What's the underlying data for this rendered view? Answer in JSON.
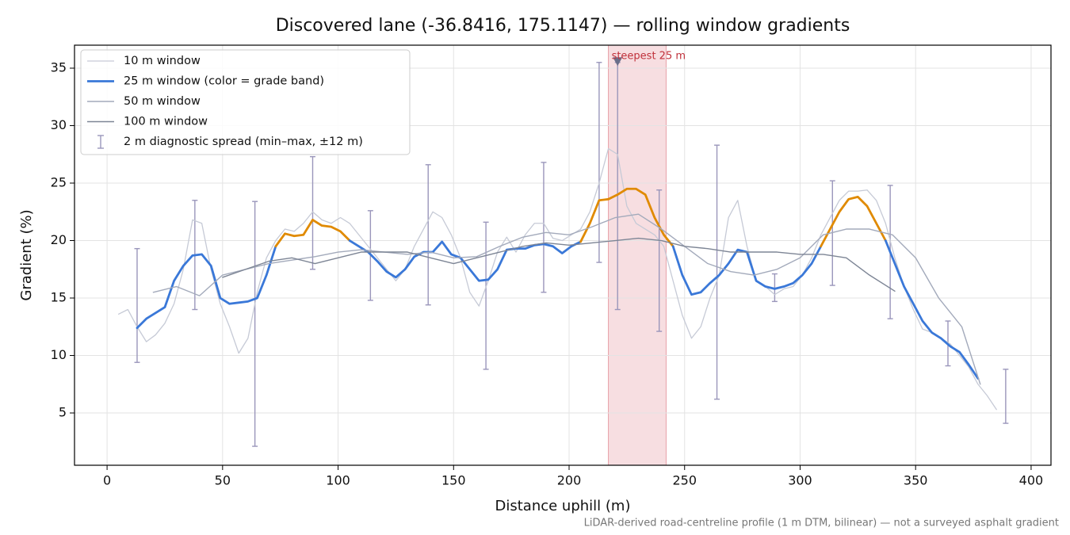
{
  "chart_data": {
    "type": "line",
    "title": "Discovered lane (-36.8416, 175.1147) — rolling window gradients",
    "xlabel": "Distance uphill (m)",
    "ylabel": "Gradient (%)",
    "note": "LiDAR-derived road-centreline profile (1 m DTM, bilinear) — not a surveyed asphalt gradient",
    "xlim": [
      -14.1,
      408.6
    ],
    "ylim": [
      0.45,
      37.0
    ],
    "xticks": [
      0,
      50,
      100,
      150,
      200,
      250,
      300,
      350,
      400
    ],
    "yticks": [
      5,
      10,
      15,
      20,
      25,
      30,
      35
    ],
    "grid": true,
    "legend": "upper left",
    "series": [
      {
        "name": "10 m window",
        "color": "#c6cad6",
        "x": [
          5,
          9,
          13,
          17,
          21,
          25,
          29,
          33,
          37,
          41,
          45,
          49,
          53,
          57,
          61,
          65,
          69,
          73,
          77,
          81,
          85,
          89,
          93,
          97,
          101,
          105,
          109,
          113,
          117,
          121,
          125,
          129,
          133,
          137,
          141,
          145,
          149,
          153,
          157,
          161,
          165,
          169,
          173,
          177,
          181,
          185,
          189,
          193,
          197,
          201,
          205,
          209,
          213,
          217,
          221,
          225,
          229,
          233,
          237,
          241,
          245,
          249,
          253,
          257,
          261,
          265,
          269,
          273,
          277,
          281,
          285,
          289,
          293,
          297,
          301,
          305,
          309,
          313,
          317,
          321,
          325,
          329,
          333,
          337,
          341,
          345,
          349,
          353,
          357,
          361,
          365,
          369,
          373,
          377,
          381,
          385
        ],
        "values": [
          13.6,
          14.0,
          12.5,
          11.2,
          11.8,
          12.8,
          14.5,
          17.5,
          21.8,
          21.5,
          17.5,
          14.5,
          12.5,
          10.2,
          11.5,
          15.5,
          18.5,
          20.0,
          21.0,
          20.8,
          21.5,
          22.5,
          21.8,
          21.5,
          22.0,
          21.5,
          20.5,
          19.5,
          18.5,
          17.5,
          16.5,
          17.5,
          19.5,
          21.0,
          22.5,
          22.0,
          20.5,
          18.5,
          15.5,
          14.3,
          16.5,
          19.0,
          20.3,
          19.0,
          20.5,
          21.5,
          21.5,
          20.2,
          20.0,
          20.5,
          21.0,
          22.5,
          25.0,
          28.0,
          27.5,
          23.0,
          21.5,
          21.0,
          20.5,
          19.5,
          16.5,
          13.5,
          11.5,
          12.5,
          15.0,
          17.0,
          22.0,
          23.5,
          19.5,
          16.5,
          16.0,
          15.3,
          15.8,
          16.0,
          17.0,
          18.5,
          20.5,
          22.0,
          23.5,
          24.3,
          24.3,
          24.4,
          23.5,
          21.5,
          18.5,
          16.0,
          14.0,
          12.3,
          12.0,
          11.5,
          11.0,
          10.0,
          9.0,
          7.5,
          6.5,
          5.3
        ]
      },
      {
        "name": "25 m window (color = grade band)",
        "color": "#3a78d8",
        "band_threshold": 20,
        "band_colors": [
          "#3a78d8",
          "#e08a00"
        ],
        "x": [
          13,
          17,
          21,
          25,
          29,
          33,
          37,
          41,
          45,
          49,
          53,
          57,
          61,
          65,
          69,
          73,
          77,
          81,
          85,
          89,
          93,
          97,
          101,
          105,
          109,
          113,
          117,
          121,
          125,
          129,
          133,
          137,
          141,
          145,
          149,
          153,
          157,
          161,
          165,
          169,
          173,
          177,
          181,
          185,
          189,
          193,
          197,
          201,
          205,
          209,
          213,
          217,
          221,
          225,
          229,
          233,
          237,
          241,
          245,
          249,
          253,
          257,
          261,
          265,
          269,
          273,
          277,
          281,
          285,
          289,
          293,
          297,
          301,
          305,
          309,
          313,
          317,
          321,
          325,
          329,
          333,
          337,
          341,
          345,
          349,
          353,
          357,
          361,
          365,
          369,
          373,
          377
        ],
        "values": [
          12.4,
          13.2,
          13.7,
          14.2,
          16.5,
          17.8,
          18.7,
          18.8,
          17.8,
          15.0,
          14.5,
          14.6,
          14.7,
          15.0,
          17.0,
          19.5,
          20.6,
          20.4,
          20.5,
          21.8,
          21.3,
          21.2,
          20.8,
          20.0,
          19.5,
          19.0,
          18.2,
          17.3,
          16.8,
          17.5,
          18.6,
          19.0,
          19.0,
          19.9,
          18.8,
          18.5,
          17.5,
          16.5,
          16.6,
          17.5,
          19.2,
          19.3,
          19.3,
          19.6,
          19.7,
          19.5,
          18.9,
          19.5,
          19.9,
          21.5,
          23.5,
          23.6,
          24.0,
          24.5,
          24.5,
          24.0,
          22.0,
          20.5,
          19.5,
          17.0,
          15.3,
          15.5,
          16.3,
          17.0,
          18.0,
          19.2,
          19.0,
          16.5,
          16.0,
          15.8,
          16.0,
          16.3,
          17.0,
          18.0,
          19.5,
          21.0,
          22.5,
          23.6,
          23.8,
          23.0,
          21.5,
          20.0,
          18.0,
          16.0,
          14.5,
          13.0,
          12.0,
          11.5,
          10.8,
          10.3,
          9.2,
          8.0
        ]
      },
      {
        "name": "50 m window",
        "color": "#a3aabb",
        "x": [
          20,
          30,
          40,
          50,
          60,
          70,
          80,
          90,
          100,
          110,
          120,
          130,
          140,
          150,
          160,
          170,
          180,
          190,
          200,
          210,
          220,
          230,
          240,
          250,
          260,
          270,
          280,
          290,
          300,
          310,
          320,
          330,
          340,
          350,
          360,
          370,
          378
        ],
        "values": [
          15.5,
          16.0,
          15.2,
          17.0,
          17.5,
          18.0,
          18.3,
          18.6,
          19.0,
          19.2,
          19.0,
          18.8,
          19.0,
          18.5,
          18.6,
          19.5,
          20.3,
          20.7,
          20.5,
          21.2,
          22.0,
          22.3,
          21.0,
          19.5,
          18.0,
          17.3,
          17.0,
          17.5,
          18.5,
          20.5,
          21.0,
          21.0,
          20.5,
          18.5,
          15.0,
          12.5,
          7.5
        ]
      },
      {
        "name": "100 m window",
        "color": "#7d8595",
        "x": [
          50,
          60,
          70,
          80,
          90,
          100,
          110,
          120,
          130,
          140,
          150,
          160,
          170,
          180,
          190,
          200,
          210,
          220,
          230,
          240,
          250,
          260,
          270,
          280,
          290,
          300,
          310,
          320,
          330,
          341
        ],
        "values": [
          16.8,
          17.5,
          18.2,
          18.5,
          18.0,
          18.5,
          19.0,
          19.0,
          19.0,
          18.5,
          18.0,
          18.5,
          19.0,
          19.5,
          19.8,
          19.6,
          19.8,
          20.0,
          20.2,
          20.0,
          19.5,
          19.3,
          19.0,
          19.0,
          19.0,
          18.8,
          18.8,
          18.5,
          17.0,
          15.6
        ]
      }
    ],
    "errorbars": {
      "name": "2 m diagnostic spread (min–max, ±12 m)",
      "color": "#9a96bb",
      "x": [
        13,
        38,
        64,
        89,
        114,
        139,
        164,
        189,
        213,
        221,
        239,
        264,
        289,
        314,
        339,
        364,
        389
      ],
      "low": [
        9.4,
        14.0,
        2.1,
        17.5,
        14.8,
        14.4,
        8.8,
        15.5,
        18.1,
        14.0,
        12.1,
        6.2,
        14.7,
        16.1,
        13.2,
        9.1,
        4.1
      ],
      "high": [
        19.3,
        23.5,
        23.4,
        27.3,
        22.6,
        26.6,
        21.6,
        26.8,
        35.5,
        35.5,
        24.4,
        28.3,
        17.1,
        25.2,
        24.8,
        13.0,
        8.8
      ]
    },
    "highlight": {
      "label": "steepest 25 m",
      "range": [
        217,
        242
      ],
      "color": "#e8a0a8",
      "marker_x": 221,
      "marker_y": 35.6
    }
  }
}
